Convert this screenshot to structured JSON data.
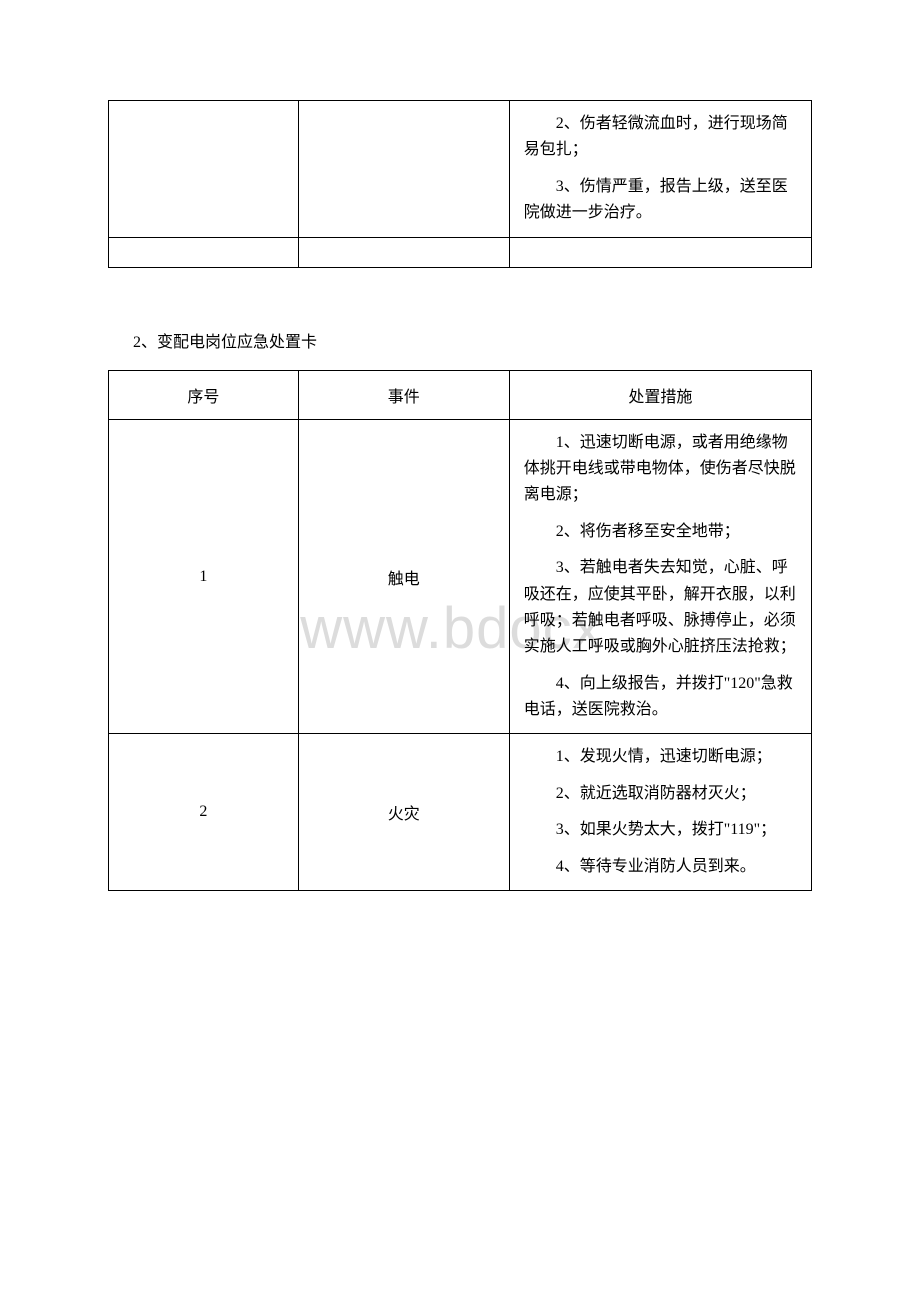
{
  "watermark_text": "www.bdocx.",
  "table1": {
    "rows": [
      {
        "col1": "",
        "col2": "",
        "measures": [
          "　　2、伤者轻微流血时，进行现场简易包扎；",
          "　　3、伤情严重，报告上级，送至医院做进一步治疗。"
        ]
      }
    ]
  },
  "section_title": "2、变配电岗位应急处置卡",
  "table2": {
    "headers": {
      "col1": "序号",
      "col2": "事件",
      "col3": "处置措施"
    },
    "rows": [
      {
        "col1": "1",
        "col2": "触电",
        "measures": [
          "　　1、迅速切断电源，或者用绝缘物体挑开电线或带电物体，使伤者尽快脱离电源；",
          "　　2、将伤者移至安全地带；",
          "　　3、若触电者失去知觉，心脏、呼吸还在，应使其平卧，解开衣服，以利呼吸；若触电者呼吸、脉搏停止，必须实施人工呼吸或胸外心脏挤压法抢救；",
          "　　4、向上级报告，并拨打\"120\"急救电话，送医院救治。"
        ]
      },
      {
        "col1": "2",
        "col2": "火灾",
        "measures": [
          "　　1、发现火情，迅速切断电源；",
          "　　2、就近选取消防器材灭火；",
          "　　3、如果火势太大，拨打\"119\"；",
          "　　4、等待专业消防人员到来。"
        ]
      }
    ]
  }
}
